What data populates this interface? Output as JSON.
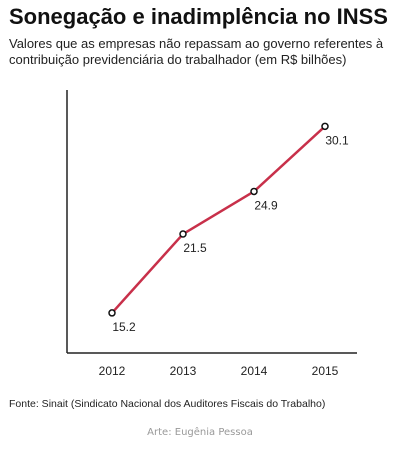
{
  "title": "Sonegação e inadimplência no INSS",
  "subtitle": "Valores que as empresas não repassam ao governo referentes à contribuição previdenciária do trabalhador (em R$ bilhões)",
  "source": "Fonte: Sinait (Sindicato Nacional dos Auditores Fiscais do Trabalho)",
  "credit": "Arte: Eugênia Pessoa",
  "colors": {
    "line": "#c8304a",
    "axis": "#222222",
    "marker_fill": "#ffffff",
    "marker_stroke": "#111111"
  },
  "chart_data": {
    "type": "line",
    "categories": [
      "2012",
      "2013",
      "2014",
      "2015"
    ],
    "series": [
      {
        "values": [
          15.2,
          21.5,
          24.9,
          30.1
        ],
        "labels": [
          "15.2",
          "21.5",
          "24.9",
          "30.1"
        ]
      }
    ],
    "ylim": [
      12,
      33
    ],
    "grid": false,
    "legend": "none"
  }
}
